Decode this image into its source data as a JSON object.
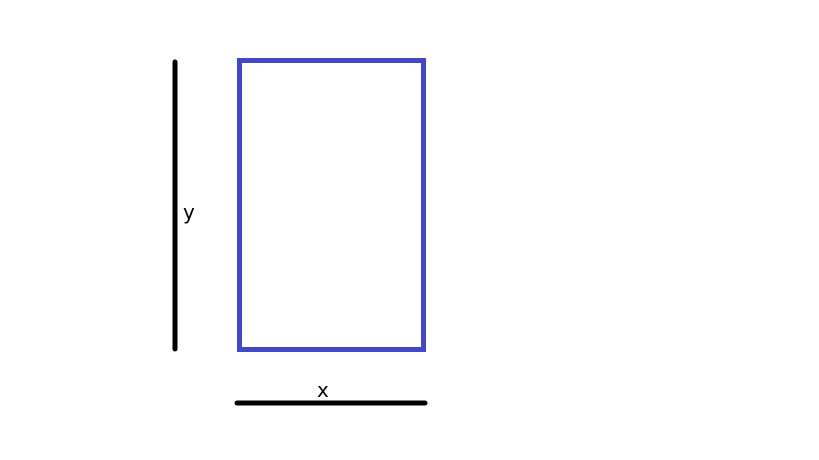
{
  "diagram": {
    "labels": {
      "y": "y",
      "x": "x"
    },
    "colors": {
      "rectangle_stroke": "#4348c8",
      "axis_lines": "#000000",
      "background": "#ffffff"
    }
  }
}
